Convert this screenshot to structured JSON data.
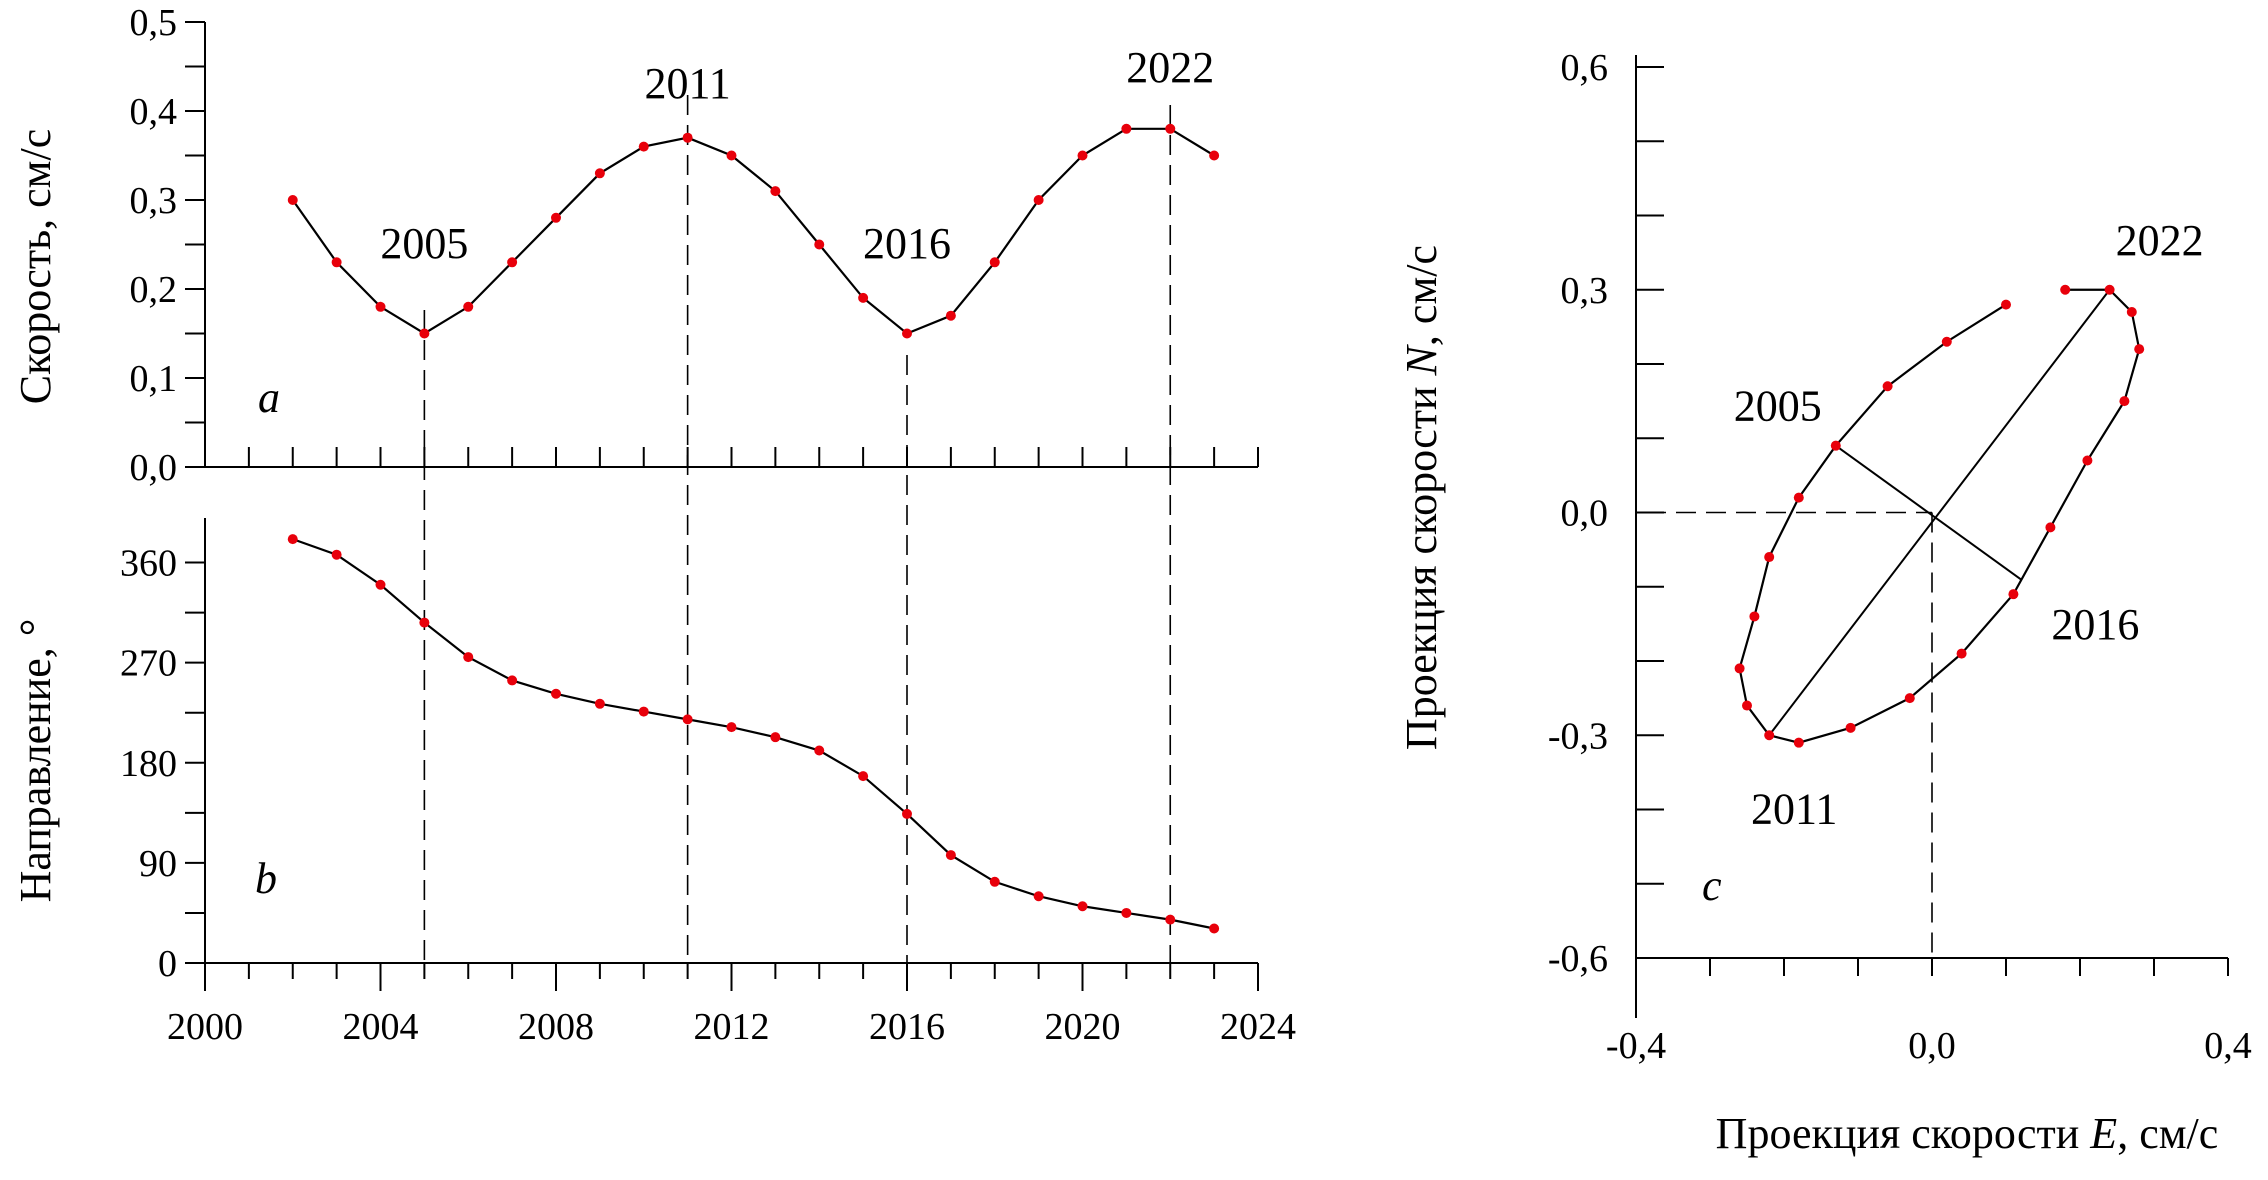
{
  "chart_data": [
    {
      "type": "line",
      "panel_label": "a",
      "ylabel": "Скорость, см/с",
      "xlabel": "",
      "xlim": [
        2000,
        2024
      ],
      "ylim": [
        0,
        0.5
      ],
      "y_ticks": [
        "0,0",
        "0,1",
        "0,2",
        "0,3",
        "0,4",
        "0,5"
      ],
      "x": [
        2002,
        2003,
        2004,
        2005,
        2006,
        2007,
        2008,
        2009,
        2010,
        2011,
        2012,
        2013,
        2014,
        2015,
        2016,
        2017,
        2018,
        2019,
        2020,
        2021,
        2022,
        2023
      ],
      "values": [
        0.3,
        0.23,
        0.18,
        0.15,
        0.18,
        0.23,
        0.28,
        0.33,
        0.36,
        0.37,
        0.35,
        0.31,
        0.25,
        0.19,
        0.15,
        0.17,
        0.23,
        0.3,
        0.35,
        0.38,
        0.38,
        0.35
      ],
      "annotations": [
        {
          "text": "2005",
          "x": 2005
        },
        {
          "text": "2011",
          "x": 2011
        },
        {
          "text": "2016",
          "x": 2016
        },
        {
          "text": "2022",
          "x": 2022
        }
      ],
      "point_color": "#e8000b",
      "line_color": "#000000"
    },
    {
      "type": "line",
      "panel_label": "b",
      "ylabel": "Направление, °",
      "xlabel": "",
      "xlim": [
        2000,
        2024
      ],
      "ylim": [
        0,
        400
      ],
      "y_ticks": [
        "0",
        "90",
        "180",
        "270",
        "360"
      ],
      "x_ticks": [
        "2000",
        "2004",
        "2008",
        "2012",
        "2016",
        "2020",
        "2024"
      ],
      "x": [
        2002,
        2003,
        2004,
        2005,
        2006,
        2007,
        2008,
        2009,
        2010,
        2011,
        2012,
        2013,
        2014,
        2015,
        2016,
        2017,
        2018,
        2019,
        2020,
        2021,
        2022,
        2023
      ],
      "values": [
        381,
        367,
        340,
        306,
        275,
        254,
        242,
        233,
        226,
        219,
        212,
        203,
        191,
        168,
        134,
        97,
        73,
        60,
        51,
        45,
        39,
        31
      ],
      "point_color": "#e8000b",
      "line_color": "#000000"
    },
    {
      "type": "scatter",
      "panel_label": "c",
      "xlabel_prefix": "Проекция скорости ",
      "xlabel_var": "E",
      "xlabel_suffix": ", см/с",
      "ylabel_prefix": "Проекция скорости ",
      "ylabel_var": "N",
      "ylabel_suffix": ", см/с",
      "xlim": [
        -0.4,
        0.4
      ],
      "ylim": [
        -0.6,
        0.6
      ],
      "x_ticks": [
        "-0,4",
        "0,0",
        "0,4"
      ],
      "y_ticks": [
        "-0,6",
        "-0,3",
        "0,0",
        "0,3",
        "0,6"
      ],
      "points": [
        {
          "x": 0.1,
          "y": 0.28
        },
        {
          "x": 0.02,
          "y": 0.23
        },
        {
          "x": -0.06,
          "y": 0.17
        },
        {
          "x": -0.13,
          "y": 0.09
        },
        {
          "x": -0.18,
          "y": 0.02
        },
        {
          "x": -0.22,
          "y": -0.06
        },
        {
          "x": -0.24,
          "y": -0.14
        },
        {
          "x": -0.26,
          "y": -0.21
        },
        {
          "x": -0.25,
          "y": -0.26
        },
        {
          "x": -0.22,
          "y": -0.3
        },
        {
          "x": -0.18,
          "y": -0.31
        },
        {
          "x": -0.11,
          "y": -0.29
        },
        {
          "x": -0.03,
          "y": -0.25
        },
        {
          "x": 0.04,
          "y": -0.19
        },
        {
          "x": 0.11,
          "y": -0.11
        },
        {
          "x": 0.16,
          "y": -0.02
        },
        {
          "x": 0.21,
          "y": 0.07
        },
        {
          "x": 0.26,
          "y": 0.15
        },
        {
          "x": 0.28,
          "y": 0.22
        },
        {
          "x": 0.27,
          "y": 0.27
        },
        {
          "x": 0.24,
          "y": 0.3
        },
        {
          "x": 0.18,
          "y": 0.3
        }
      ],
      "axes_segments": [
        {
          "x1": -0.22,
          "y1": -0.3,
          "x2": 0.24,
          "y2": 0.3
        },
        {
          "x1": -0.13,
          "y1": 0.09,
          "x2": 0.12,
          "y2": -0.09
        }
      ],
      "annotations": [
        {
          "text": "2005",
          "x": -0.13,
          "y": 0.09
        },
        {
          "text": "2011",
          "x": -0.22,
          "y": -0.3
        },
        {
          "text": "2016",
          "x": 0.11,
          "y": -0.11
        },
        {
          "text": "2022",
          "x": 0.24,
          "y": 0.3
        }
      ],
      "point_color": "#e8000b",
      "line_color": "#000000"
    }
  ]
}
